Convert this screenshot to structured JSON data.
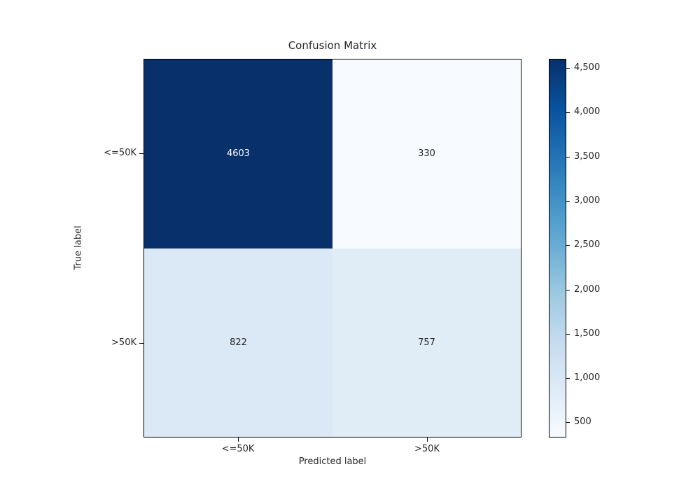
{
  "chart_data": {
    "type": "heatmap",
    "title": "Confusion Matrix",
    "xlabel": "Predicted label",
    "ylabel": "True label",
    "x_categories": [
      "<=50K",
      ">50K"
    ],
    "y_categories": [
      "<=50K",
      ">50K"
    ],
    "matrix": [
      [
        4603,
        330
      ],
      [
        822,
        757
      ]
    ],
    "cell_labels": [
      [
        "4603",
        "330"
      ],
      [
        "822",
        "757"
      ]
    ],
    "cell_colors": [
      [
        "#08306b",
        "#f7fbff"
      ],
      [
        "#dbe8f5",
        "#e0edf7"
      ]
    ],
    "cell_text_colors": [
      [
        "#ffffff",
        "#262626"
      ],
      [
        "#262626",
        "#262626"
      ]
    ],
    "grid": false,
    "legend_position": "none",
    "colorbar": {
      "position": "right",
      "vmin": 330,
      "vmax": 4603,
      "ticks": [
        500,
        1000,
        1500,
        2000,
        2500,
        3000,
        3500,
        4000,
        4500
      ],
      "tick_labels": [
        "500",
        "1,000",
        "1,500",
        "2,000",
        "2,500",
        "3,000",
        "3,500",
        "4,000",
        "4,500"
      ],
      "colormap": "Blues",
      "gradient_stops": [
        "#f7fbff",
        "#deebf7",
        "#c6dbef",
        "#9ecae1",
        "#6baed6",
        "#4292c6",
        "#2171b5",
        "#08519c",
        "#08306b"
      ]
    }
  },
  "colors": {
    "background": "#ffffff",
    "frame": "#000000",
    "text": "#262626"
  }
}
